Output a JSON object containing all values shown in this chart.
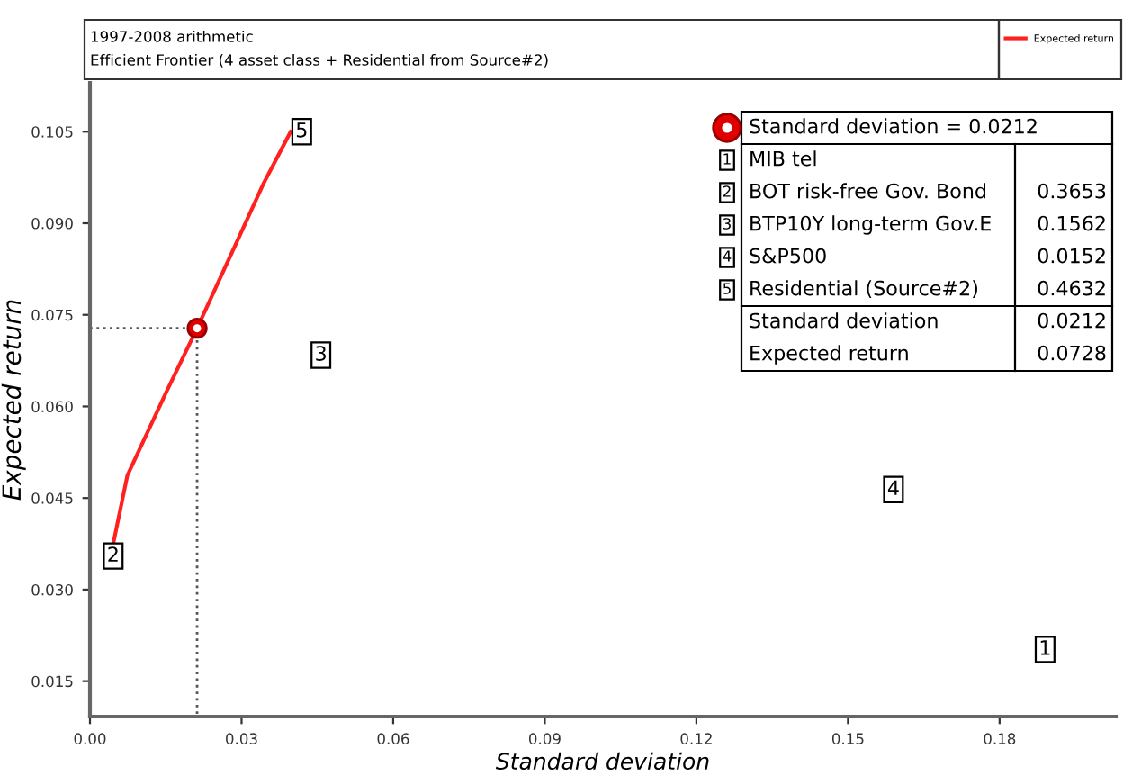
{
  "chart_data": {
    "type": "line",
    "title": "1997-2008 arithmetic",
    "subtitle": "Efficient Frontier (4 asset class + Residential from Source#2)",
    "xlabel": "Standard deviation",
    "ylabel": "Expected return",
    "xlim": [
      0,
      0.203
    ],
    "ylim": [
      0.0092,
      0.113
    ],
    "xticks": [
      {
        "value": 0,
        "label": "0.00"
      },
      0.03,
      0.06,
      0.09,
      0.12,
      0.15,
      0.18
    ],
    "yticks": [
      0.015,
      {
        "value": 0.03,
        "label": "0.030"
      },
      0.045,
      {
        "value": 0.06,
        "label": "0.060"
      },
      0.075,
      {
        "value": 0.09,
        "label": "0.090"
      },
      0.105
    ],
    "grid": false,
    "legend": "top right",
    "series": [
      {
        "name": "Expected return",
        "color": "#ff2020",
        "line_style": "solid",
        "x": [
          0.0046,
          0.0074,
          0.0149,
          0.0212,
          0.0287,
          0.0344,
          0.0397
        ],
        "values": [
          0.0375,
          0.0487,
          0.062,
          0.0728,
          0.0863,
          0.0966,
          0.105
        ]
      },
      {
        "type": "line",
        "color": "#555555",
        "line_style": "dotted",
        "x": [
          0,
          0.0212,
          0.0212
        ],
        "values": [
          0.0728,
          0.0728,
          0.0092
        ]
      },
      {
        "type": "scatter",
        "color": "#e00000",
        "marker": "circle",
        "x": [
          0.0212
        ],
        "values": [
          0.0728
        ]
      }
    ],
    "annotations": [
      {
        "text": "1",
        "x": 0.189,
        "y": 0.0202
      },
      {
        "text": "2",
        "x": 0.0046,
        "y": 0.0355
      },
      {
        "text": "3",
        "x": 0.0457,
        "y": 0.0684
      },
      {
        "text": "4",
        "x": 0.159,
        "y": 0.0464
      },
      {
        "text": "5",
        "x": 0.0419,
        "y": 0.105
      },
      "Standard deviation = 0.0212",
      "MIB tel",
      "BOT risk-free Gov. Bond",
      "BTP10Y long-term Gov.E",
      "S&P500",
      "Residential (Source#2)",
      "0.3653",
      "0.1562",
      "0.0152",
      "0.4632",
      "Standard deviation",
      "0.0212",
      "Expected return",
      "0.0728"
    ]
  }
}
